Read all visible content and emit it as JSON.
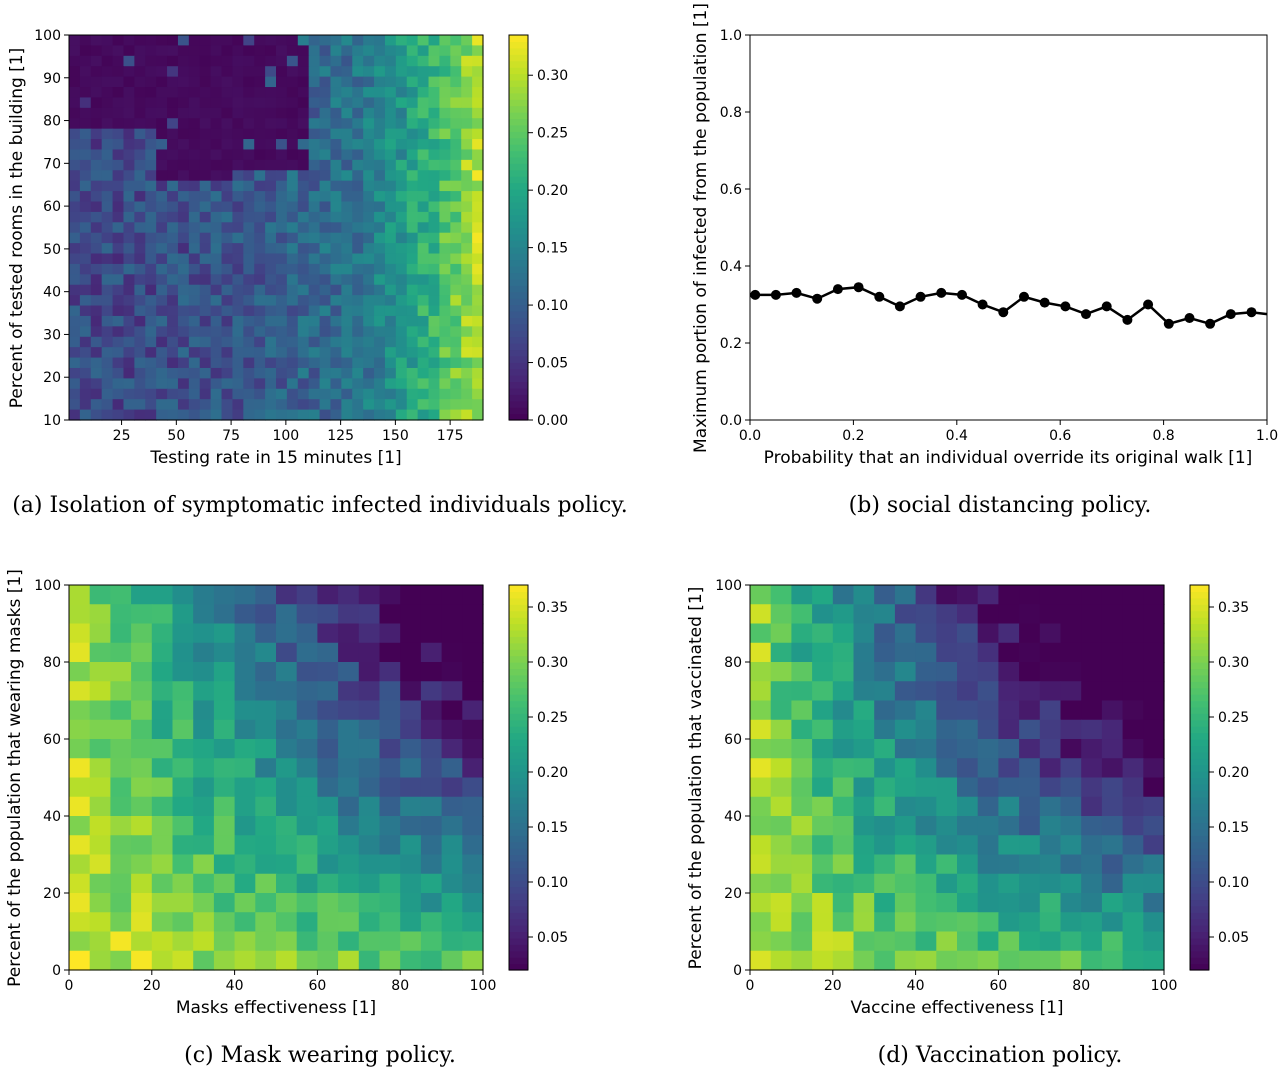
{
  "chart_data": [
    {
      "id": "a",
      "type": "heatmap",
      "caption": "(a) Isolation of symptomatic infected individuals policy.",
      "xlabel": "Testing rate in 15 minutes [1]",
      "ylabel": "Percent of tested rooms in the building [1]",
      "xlim": [
        1,
        190
      ],
      "ylim": [
        10,
        100
      ],
      "xticks": [
        25,
        50,
        75,
        100,
        125,
        150,
        175
      ],
      "yticks": [
        10,
        20,
        30,
        40,
        50,
        60,
        70,
        80,
        90,
        100
      ],
      "colorbar": {
        "min": 0.0,
        "max": 0.335,
        "ticks": [
          "0.00",
          "0.05",
          "0.10",
          "0.15",
          "0.20",
          "0.25",
          "0.30"
        ]
      },
      "grid": {
        "rows": 37,
        "cols": 38
      },
      "values_note_ui": "color value rises left to right; dark purple block top-left"
    },
    {
      "id": "b",
      "type": "line",
      "caption": "(b) social distancing policy.",
      "xlabel": "Probability that an individual override its original walk [1]",
      "ylabel": "Maximum portion of infected from the population [1]",
      "xlim": [
        0.0,
        1.0
      ],
      "ylim": [
        0.0,
        1.0
      ],
      "xticks": [
        "0.0",
        "0.2",
        "0.4",
        "0.6",
        "0.8",
        "1.0"
      ],
      "yticks": [
        "0.0",
        "0.2",
        "0.4",
        "0.6",
        "0.8",
        "1.0"
      ],
      "x": [
        0.01,
        0.05,
        0.09,
        0.13,
        0.17,
        0.21,
        0.25,
        0.29,
        0.33,
        0.37,
        0.41,
        0.45,
        0.49,
        0.53,
        0.57,
        0.61,
        0.65,
        0.69,
        0.73,
        0.77,
        0.81,
        0.85,
        0.89,
        0.93,
        0.97,
        1.01
      ],
      "y": [
        0.325,
        0.325,
        0.33,
        0.315,
        0.34,
        0.345,
        0.32,
        0.295,
        0.32,
        0.33,
        0.325,
        0.3,
        0.28,
        0.32,
        0.305,
        0.295,
        0.275,
        0.295,
        0.26,
        0.3,
        0.25,
        0.265,
        0.25,
        0.275,
        0.28,
        0.275
      ],
      "color": "#000000"
    },
    {
      "id": "c",
      "type": "heatmap",
      "caption": "(c) Mask wearing policy.",
      "xlabel": "Masks effectiveness [1]",
      "ylabel": "Percent of the population that wearing masks [1]",
      "xlim": [
        0,
        100
      ],
      "ylim": [
        0,
        100
      ],
      "xticks": [
        0,
        20,
        40,
        60,
        80,
        100
      ],
      "yticks": [
        0,
        20,
        40,
        60,
        80,
        100
      ],
      "colorbar": {
        "min": 0.02,
        "max": 0.37,
        "ticks": [
          "0.05",
          "0.10",
          "0.15",
          "0.20",
          "0.25",
          "0.30",
          "0.35"
        ]
      },
      "grid": {
        "rows": 20,
        "cols": 20
      }
    },
    {
      "id": "d",
      "type": "heatmap",
      "caption": "(d) Vaccination policy.",
      "xlabel": "Vaccine effectiveness [1]",
      "ylabel": "Percent of the population that vaccinated [1]",
      "xlim": [
        0,
        100
      ],
      "ylim": [
        0,
        100
      ],
      "xticks": [
        0,
        20,
        40,
        60,
        80,
        100
      ],
      "yticks": [
        0,
        20,
        40,
        60,
        80,
        100
      ],
      "colorbar": {
        "min": 0.02,
        "max": 0.37,
        "ticks": [
          "0.05",
          "0.10",
          "0.15",
          "0.20",
          "0.25",
          "0.30",
          "0.35"
        ]
      },
      "grid": {
        "rows": 20,
        "cols": 20
      }
    }
  ]
}
